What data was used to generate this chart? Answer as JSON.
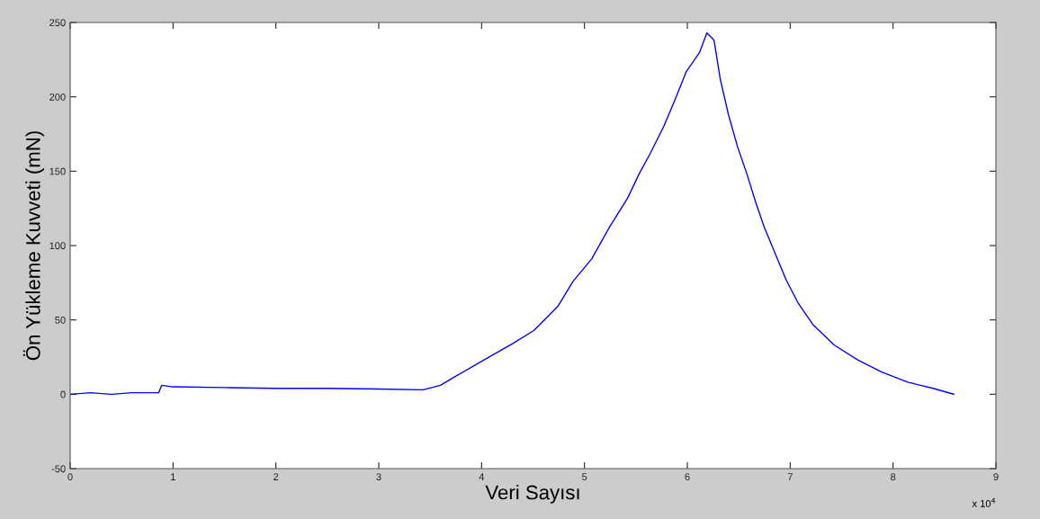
{
  "chart_data": {
    "type": "line",
    "xlabel": "Veri Sayısı",
    "ylabel": "Ön Yükleme Kuvveti (mN)",
    "annotations": [
      "x 10$^{4}$"
    ],
    "series": [
      {
        "color": "#0000ff",
        "x": [
          0,
          0.2,
          0.4,
          0.6,
          0.86,
          0.89,
          1.0,
          1.5,
          2.0,
          2.5,
          3.0,
          3.43,
          3.6,
          3.72,
          4.02,
          4.3,
          4.51,
          4.74,
          4.89,
          5.07,
          5.24,
          5.42,
          5.53,
          5.64,
          5.77,
          5.88,
          5.99,
          6.12,
          6.19,
          6.26,
          6.32,
          6.4,
          6.49,
          6.58,
          6.67,
          6.75,
          6.84,
          6.96,
          7.08,
          7.22,
          7.43,
          7.66,
          7.89,
          8.15,
          8.39,
          8.59
        ],
        "values": [
          0,
          1,
          0,
          1,
          1,
          6,
          5,
          4.5,
          4,
          4,
          3.5,
          3,
          6,
          11,
          23,
          34,
          43,
          59,
          76,
          91,
          112,
          132,
          148,
          162,
          180,
          198,
          217,
          230,
          243,
          238,
          212,
          188,
          166,
          148,
          128,
          112,
          97,
          77,
          61,
          47,
          33,
          23,
          15,
          8,
          4,
          0
        ]
      }
    ],
    "xlim": [
      0,
      9
    ],
    "xticks": [
      0,
      1,
      2,
      3,
      4,
      5,
      6,
      7,
      8,
      9
    ],
    "ylim": [
      -50,
      250
    ],
    "yticks": [
      -50,
      0,
      50,
      100,
      150,
      200,
      250
    ],
    "grid": false,
    "legend": false
  }
}
